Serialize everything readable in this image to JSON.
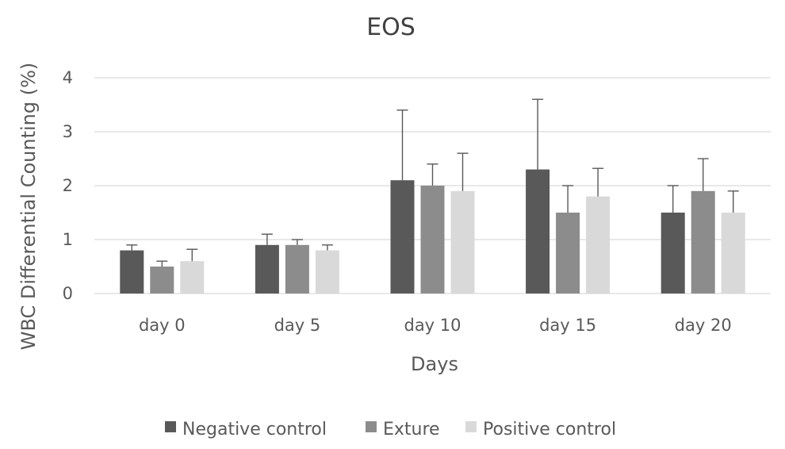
{
  "chart_data": {
    "type": "bar",
    "title": "EOS",
    "xlabel": "Days",
    "ylabel": "WBC Differential Counting (%)",
    "ylim": [
      0,
      4
    ],
    "yticks": [
      "0",
      "1",
      "2",
      "3",
      "4"
    ],
    "grid": true,
    "legend_position": "bottom",
    "categories": [
      "day 0",
      "day 5",
      "day 10",
      "day 15",
      "day 20"
    ],
    "series": [
      {
        "name": "Negative control",
        "color": "#595959",
        "values": [
          0.8,
          0.9,
          2.1,
          2.3,
          1.5
        ],
        "errors": [
          0.1,
          0.2,
          1.3,
          1.3,
          0.5
        ]
      },
      {
        "name": "Exture",
        "color": "#8c8c8c",
        "values": [
          0.5,
          0.9,
          2.0,
          1.5,
          1.9
        ],
        "errors": [
          0.1,
          0.1,
          0.4,
          0.5,
          0.6
        ]
      },
      {
        "name": "Positive control",
        "color": "#d9d9d9",
        "values": [
          0.6,
          0.8,
          1.9,
          1.8,
          1.5
        ],
        "errors": [
          0.22,
          0.1,
          0.7,
          0.52,
          0.4
        ]
      }
    ]
  }
}
